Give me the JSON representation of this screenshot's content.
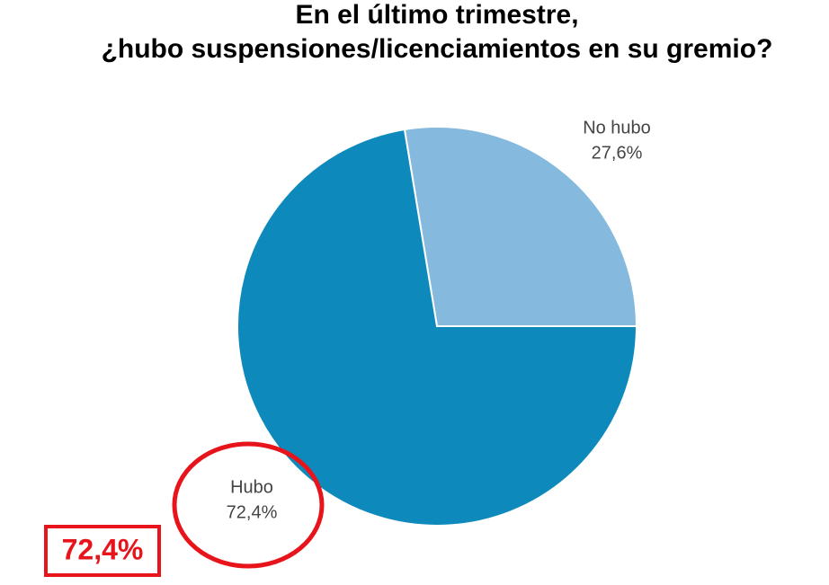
{
  "chart_data": {
    "type": "pie",
    "title": [
      "En el último trimestre,",
      "¿hubo suspensiones/licenciamientos en su gremio?"
    ],
    "categories": [
      "No hubo",
      "Hubo"
    ],
    "values": [
      27.6,
      72.4
    ],
    "value_labels": [
      "27,6%",
      "72,4%"
    ],
    "colors": [
      "#85bade",
      "#0e89bb"
    ],
    "annotations": [
      "72,4%"
    ]
  }
}
